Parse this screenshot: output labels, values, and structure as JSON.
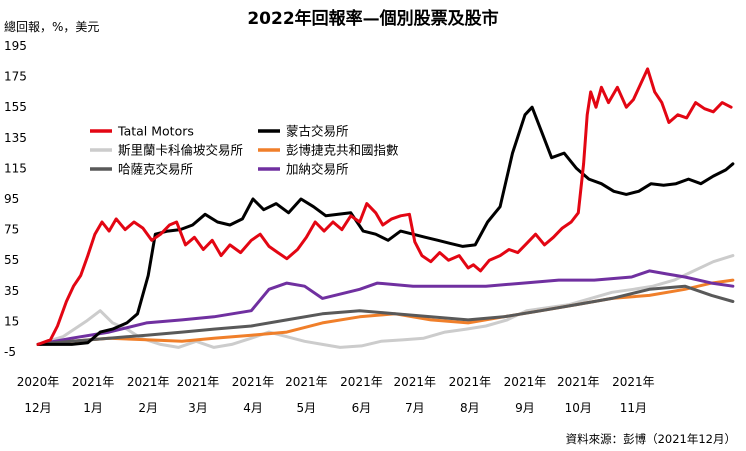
{
  "chart_data": {
    "type": "line",
    "title": "2022年回報率—個別股票及股市",
    "ylabel": "總回報，%，美元",
    "ylim": [
      -5,
      195
    ],
    "yticks": [
      -5,
      15,
      35,
      55,
      75,
      95,
      115,
      135,
      155,
      175,
      195
    ],
    "grid": false,
    "legend_position": "upper-left",
    "x_ticks": [
      {
        "year": "2020年",
        "month": "12月"
      },
      {
        "year": "2021年",
        "month": "1月"
      },
      {
        "year": "2021年",
        "month": "2月"
      },
      {
        "year": "2021年",
        "month": "3月"
      },
      {
        "year": "2021年",
        "month": "4月"
      },
      {
        "year": "2021年",
        "month": "5月"
      },
      {
        "year": "2021年",
        "month": "6月"
      },
      {
        "year": "2021年",
        "month": "7月"
      },
      {
        "year": "2021年",
        "month": "8月"
      },
      {
        "year": "2021年",
        "month": "9月"
      },
      {
        "year": "2021年",
        "month": "10月"
      },
      {
        "year": "2021年",
        "month": "11月"
      }
    ],
    "x_dates": [
      "2020-12-01",
      "2021-01-01",
      "2021-02-01",
      "2021-03-01",
      "2021-04-01",
      "2021-05-01",
      "2021-06-01",
      "2021-07-01",
      "2021-08-01",
      "2021-09-01",
      "2021-10-01",
      "2021-11-01"
    ],
    "x_range": [
      "2020-12-01",
      "2021-12-31"
    ],
    "source": "資料來源：彭博（2021年12月）",
    "series": [
      {
        "name": "Tatal Motors",
        "color": "#e30613",
        "stroke_width": 3,
        "points": [
          [
            "2020-12-01",
            0
          ],
          [
            "2020-12-08",
            3
          ],
          [
            "2020-12-12",
            12
          ],
          [
            "2020-12-17",
            28
          ],
          [
            "2020-12-21",
            38
          ],
          [
            "2020-12-25",
            45
          ],
          [
            "2020-12-29",
            58
          ],
          [
            "2021-01-02",
            72
          ],
          [
            "2021-01-06",
            80
          ],
          [
            "2021-01-10",
            74
          ],
          [
            "2021-01-14",
            82
          ],
          [
            "2021-01-19",
            75
          ],
          [
            "2021-01-24",
            80
          ],
          [
            "2021-01-29",
            76
          ],
          [
            "2021-02-03",
            68
          ],
          [
            "2021-02-08",
            72
          ],
          [
            "2021-02-13",
            78
          ],
          [
            "2021-02-17",
            80
          ],
          [
            "2021-02-22",
            65
          ],
          [
            "2021-02-27",
            70
          ],
          [
            "2021-03-04",
            62
          ],
          [
            "2021-03-09",
            68
          ],
          [
            "2021-03-14",
            58
          ],
          [
            "2021-03-19",
            65
          ],
          [
            "2021-03-25",
            60
          ],
          [
            "2021-03-31",
            68
          ],
          [
            "2021-04-05",
            72
          ],
          [
            "2021-04-10",
            64
          ],
          [
            "2021-04-15",
            60
          ],
          [
            "2021-04-20",
            56
          ],
          [
            "2021-04-26",
            62
          ],
          [
            "2021-05-01",
            70
          ],
          [
            "2021-05-06",
            80
          ],
          [
            "2021-05-11",
            74
          ],
          [
            "2021-05-16",
            80
          ],
          [
            "2021-05-21",
            75
          ],
          [
            "2021-05-26",
            84
          ],
          [
            "2021-05-31",
            80
          ],
          [
            "2021-06-04",
            92
          ],
          [
            "2021-06-09",
            86
          ],
          [
            "2021-06-13",
            78
          ],
          [
            "2021-06-18",
            82
          ],
          [
            "2021-06-23",
            84
          ],
          [
            "2021-06-28",
            85
          ],
          [
            "2021-07-01",
            67
          ],
          [
            "2021-07-05",
            58
          ],
          [
            "2021-07-10",
            54
          ],
          [
            "2021-07-15",
            60
          ],
          [
            "2021-07-20",
            55
          ],
          [
            "2021-07-26",
            58
          ],
          [
            "2021-07-31",
            50
          ],
          [
            "2021-08-03",
            52
          ],
          [
            "2021-08-07",
            48
          ],
          [
            "2021-08-12",
            55
          ],
          [
            "2021-08-18",
            58
          ],
          [
            "2021-08-23",
            62
          ],
          [
            "2021-08-28",
            60
          ],
          [
            "2021-09-02",
            66
          ],
          [
            "2021-09-07",
            72
          ],
          [
            "2021-09-12",
            65
          ],
          [
            "2021-09-17",
            70
          ],
          [
            "2021-09-22",
            76
          ],
          [
            "2021-09-27",
            80
          ],
          [
            "2021-10-01",
            86
          ],
          [
            "2021-10-04",
            118
          ],
          [
            "2021-10-06",
            150
          ],
          [
            "2021-10-08",
            165
          ],
          [
            "2021-10-11",
            155
          ],
          [
            "2021-10-14",
            168
          ],
          [
            "2021-10-18",
            158
          ],
          [
            "2021-10-23",
            168
          ],
          [
            "2021-10-28",
            155
          ],
          [
            "2021-11-01",
            160
          ],
          [
            "2021-11-05",
            170
          ],
          [
            "2021-11-09",
            180
          ],
          [
            "2021-11-13",
            165
          ],
          [
            "2021-11-17",
            158
          ],
          [
            "2021-11-21",
            145
          ],
          [
            "2021-11-26",
            150
          ],
          [
            "2021-12-01",
            148
          ],
          [
            "2021-12-06",
            158
          ],
          [
            "2021-12-11",
            154
          ],
          [
            "2021-12-16",
            152
          ],
          [
            "2021-12-21",
            158
          ],
          [
            "2021-12-26",
            155
          ]
        ]
      },
      {
        "name": "蒙古交易所",
        "color": "#000000",
        "stroke_width": 3,
        "points": [
          [
            "2020-12-01",
            0
          ],
          [
            "2020-12-10",
            0
          ],
          [
            "2020-12-20",
            0
          ],
          [
            "2020-12-29",
            1
          ],
          [
            "2021-01-05",
            8
          ],
          [
            "2021-01-12",
            10
          ],
          [
            "2021-01-20",
            14
          ],
          [
            "2021-01-26",
            20
          ],
          [
            "2021-02-01",
            45
          ],
          [
            "2021-02-05",
            72
          ],
          [
            "2021-02-12",
            74
          ],
          [
            "2021-02-19",
            75
          ],
          [
            "2021-02-26",
            78
          ],
          [
            "2021-03-05",
            85
          ],
          [
            "2021-03-12",
            80
          ],
          [
            "2021-03-19",
            78
          ],
          [
            "2021-03-26",
            82
          ],
          [
            "2021-04-01",
            95
          ],
          [
            "2021-04-07",
            88
          ],
          [
            "2021-04-14",
            92
          ],
          [
            "2021-04-21",
            86
          ],
          [
            "2021-04-28",
            95
          ],
          [
            "2021-05-05",
            90
          ],
          [
            "2021-05-12",
            84
          ],
          [
            "2021-05-19",
            85
          ],
          [
            "2021-05-26",
            86
          ],
          [
            "2021-06-02",
            74
          ],
          [
            "2021-06-09",
            72
          ],
          [
            "2021-06-16",
            68
          ],
          [
            "2021-06-23",
            74
          ],
          [
            "2021-06-30",
            72
          ],
          [
            "2021-07-07",
            70
          ],
          [
            "2021-07-14",
            68
          ],
          [
            "2021-07-21",
            66
          ],
          [
            "2021-07-28",
            64
          ],
          [
            "2021-08-04",
            65
          ],
          [
            "2021-08-11",
            80
          ],
          [
            "2021-08-18",
            90
          ],
          [
            "2021-08-25",
            125
          ],
          [
            "2021-09-01",
            150
          ],
          [
            "2021-09-05",
            155
          ],
          [
            "2021-09-10",
            140
          ],
          [
            "2021-09-16",
            122
          ],
          [
            "2021-09-23",
            125
          ],
          [
            "2021-09-30",
            115
          ],
          [
            "2021-10-07",
            108
          ],
          [
            "2021-10-14",
            105
          ],
          [
            "2021-10-21",
            100
          ],
          [
            "2021-10-28",
            98
          ],
          [
            "2021-11-04",
            100
          ],
          [
            "2021-11-11",
            105
          ],
          [
            "2021-11-18",
            104
          ],
          [
            "2021-11-25",
            105
          ],
          [
            "2021-12-02",
            108
          ],
          [
            "2021-12-09",
            105
          ],
          [
            "2021-12-16",
            110
          ],
          [
            "2021-12-23",
            114
          ],
          [
            "2021-12-27",
            118
          ]
        ]
      },
      {
        "name": "斯里蘭卡科倫坡交易所",
        "color": "#cccccc",
        "stroke_width": 3,
        "points": [
          [
            "2020-12-01",
            0
          ],
          [
            "2020-12-15",
            5
          ],
          [
            "2020-12-28",
            15
          ],
          [
            "2021-01-05",
            22
          ],
          [
            "2021-01-12",
            14
          ],
          [
            "2021-01-20",
            10
          ],
          [
            "2021-01-28",
            4
          ],
          [
            "2021-02-08",
            0
          ],
          [
            "2021-02-18",
            -2
          ],
          [
            "2021-02-28",
            2
          ],
          [
            "2021-03-10",
            -2
          ],
          [
            "2021-03-20",
            0
          ],
          [
            "2021-03-31",
            4
          ],
          [
            "2021-04-10",
            8
          ],
          [
            "2021-04-20",
            5
          ],
          [
            "2021-04-30",
            2
          ],
          [
            "2021-05-10",
            0
          ],
          [
            "2021-05-20",
            -2
          ],
          [
            "2021-06-01",
            -1
          ],
          [
            "2021-06-12",
            2
          ],
          [
            "2021-06-25",
            3
          ],
          [
            "2021-07-06",
            4
          ],
          [
            "2021-07-18",
            8
          ],
          [
            "2021-07-30",
            10
          ],
          [
            "2021-08-10",
            12
          ],
          [
            "2021-08-22",
            16
          ],
          [
            "2021-09-02",
            22
          ],
          [
            "2021-09-14",
            24
          ],
          [
            "2021-09-26",
            26
          ],
          [
            "2021-10-08",
            30
          ],
          [
            "2021-10-20",
            34
          ],
          [
            "2021-11-01",
            36
          ],
          [
            "2021-11-12",
            38
          ],
          [
            "2021-11-24",
            42
          ],
          [
            "2021-12-05",
            48
          ],
          [
            "2021-12-16",
            54
          ],
          [
            "2021-12-27",
            58
          ]
        ]
      },
      {
        "name": "彭博捷克共和國指數",
        "color": "#f07f2a",
        "stroke_width": 3,
        "points": [
          [
            "2020-12-01",
            0
          ],
          [
            "2020-12-20",
            2
          ],
          [
            "2021-01-10",
            4
          ],
          [
            "2021-01-31",
            3
          ],
          [
            "2021-02-20",
            2
          ],
          [
            "2021-03-10",
            4
          ],
          [
            "2021-03-31",
            6
          ],
          [
            "2021-04-20",
            8
          ],
          [
            "2021-05-10",
            14
          ],
          [
            "2021-05-31",
            18
          ],
          [
            "2021-06-20",
            20
          ],
          [
            "2021-07-10",
            16
          ],
          [
            "2021-07-31",
            14
          ],
          [
            "2021-08-20",
            18
          ],
          [
            "2021-09-10",
            22
          ],
          [
            "2021-09-30",
            26
          ],
          [
            "2021-10-20",
            30
          ],
          [
            "2021-11-10",
            32
          ],
          [
            "2021-11-30",
            36
          ],
          [
            "2021-12-15",
            40
          ],
          [
            "2021-12-27",
            42
          ]
        ]
      },
      {
        "name": "哈薩克交易所",
        "color": "#595959",
        "stroke_width": 3,
        "points": [
          [
            "2020-12-01",
            0
          ],
          [
            "2020-12-20",
            2
          ],
          [
            "2021-01-10",
            4
          ],
          [
            "2021-01-31",
            6
          ],
          [
            "2021-02-20",
            8
          ],
          [
            "2021-03-10",
            10
          ],
          [
            "2021-03-31",
            12
          ],
          [
            "2021-04-20",
            16
          ],
          [
            "2021-05-10",
            20
          ],
          [
            "2021-05-31",
            22
          ],
          [
            "2021-06-20",
            20
          ],
          [
            "2021-07-10",
            18
          ],
          [
            "2021-07-31",
            16
          ],
          [
            "2021-08-20",
            18
          ],
          [
            "2021-09-10",
            22
          ],
          [
            "2021-09-30",
            26
          ],
          [
            "2021-10-20",
            30
          ],
          [
            "2021-11-10",
            36
          ],
          [
            "2021-11-30",
            38
          ],
          [
            "2021-12-15",
            32
          ],
          [
            "2021-12-27",
            28
          ]
        ]
      },
      {
        "name": "加納交易所",
        "color": "#7030a0",
        "stroke_width": 3,
        "points": [
          [
            "2020-12-01",
            0
          ],
          [
            "2020-12-20",
            4
          ],
          [
            "2021-01-10",
            8
          ],
          [
            "2021-01-31",
            14
          ],
          [
            "2021-02-20",
            16
          ],
          [
            "2021-03-10",
            18
          ],
          [
            "2021-03-31",
            22
          ],
          [
            "2021-04-10",
            36
          ],
          [
            "2021-04-20",
            40
          ],
          [
            "2021-04-30",
            38
          ],
          [
            "2021-05-10",
            30
          ],
          [
            "2021-05-31",
            36
          ],
          [
            "2021-06-10",
            40
          ],
          [
            "2021-06-30",
            38
          ],
          [
            "2021-07-20",
            38
          ],
          [
            "2021-08-10",
            38
          ],
          [
            "2021-08-31",
            40
          ],
          [
            "2021-09-20",
            42
          ],
          [
            "2021-10-10",
            42
          ],
          [
            "2021-10-31",
            44
          ],
          [
            "2021-11-10",
            48
          ],
          [
            "2021-11-20",
            46
          ],
          [
            "2021-11-30",
            44
          ],
          [
            "2021-12-15",
            40
          ],
          [
            "2021-12-27",
            38
          ]
        ]
      }
    ]
  }
}
